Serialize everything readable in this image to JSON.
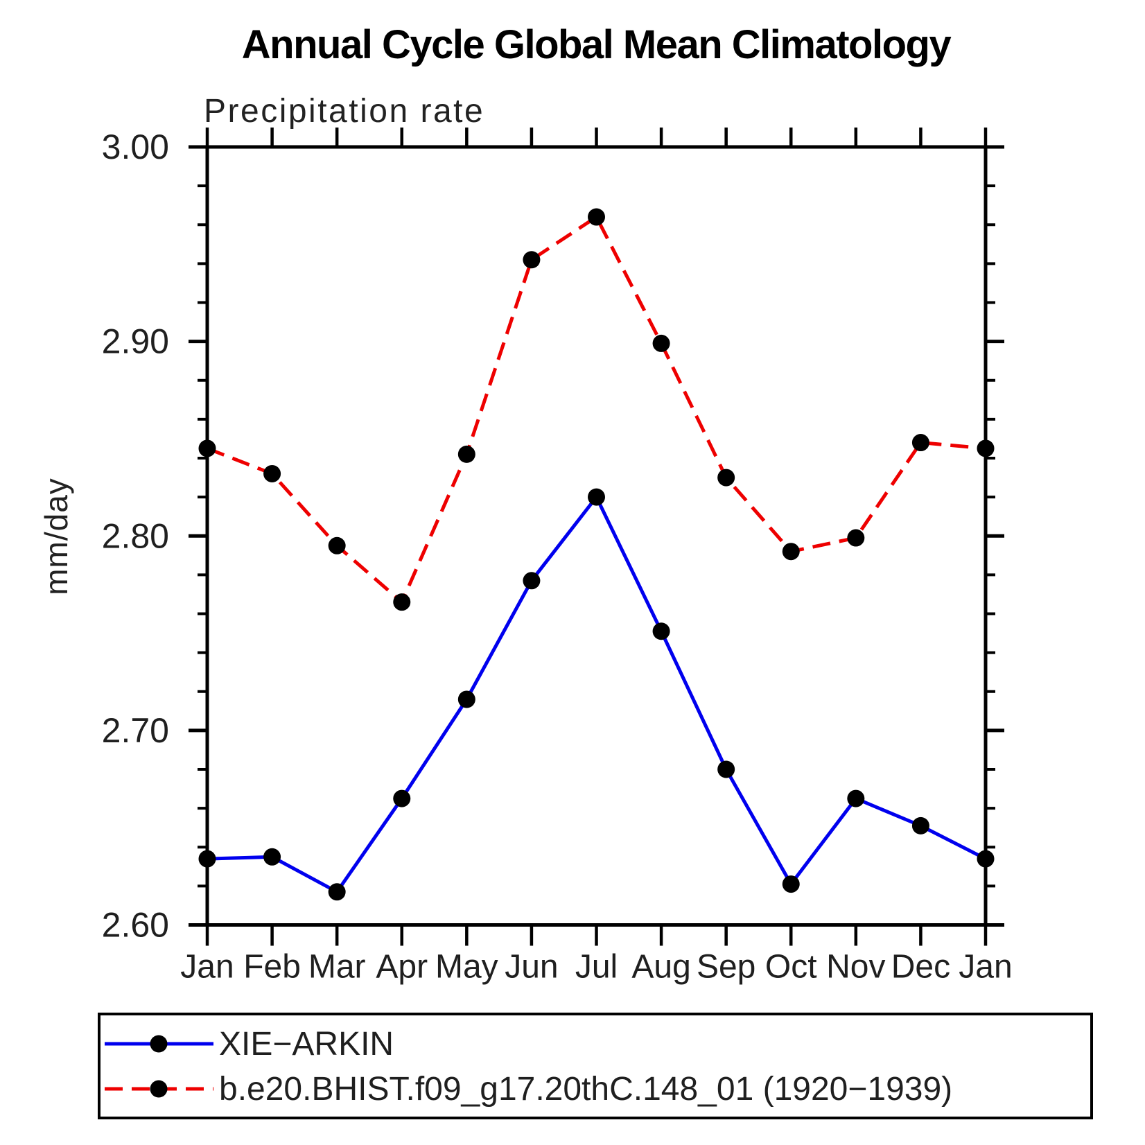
{
  "title": "Annual Cycle Global Mean Climatology",
  "chart_data": {
    "type": "line",
    "title": "Annual Cycle Global Mean Climatology",
    "subtitle": "Precipitation rate",
    "ylabel": "mm/day",
    "xlabel": "",
    "categories": [
      "Jan",
      "Feb",
      "Mar",
      "Apr",
      "May",
      "Jun",
      "Jul",
      "Aug",
      "Sep",
      "Oct",
      "Nov",
      "Dec",
      "Jan"
    ],
    "series": [
      {
        "name": "XIE−ARKIN",
        "style": "solid",
        "color": "#0000ee",
        "marker": "circle",
        "marker_color": "#000000",
        "values": [
          2.634,
          2.635,
          2.617,
          2.665,
          2.716,
          2.777,
          2.82,
          2.751,
          2.68,
          2.621,
          2.665,
          2.651,
          2.634
        ]
      },
      {
        "name": "b.e20.BHIST.f09_g17.20thC.148_01 (1920−1939)",
        "style": "dashed",
        "color": "#ee0000",
        "marker": "circle",
        "marker_color": "#000000",
        "values": [
          2.845,
          2.832,
          2.795,
          2.766,
          2.842,
          2.942,
          2.964,
          2.899,
          2.83,
          2.792,
          2.799,
          2.848,
          2.845
        ]
      }
    ],
    "ylim": [
      2.6,
      3.0
    ],
    "ytick_major": [
      2.6,
      2.7,
      2.8,
      2.9,
      3.0
    ],
    "ytick_labels": [
      "2.60",
      "2.70",
      "2.80",
      "2.90",
      "3.00"
    ],
    "ytick_minor_step": 0.02,
    "grid": false,
    "legend_position": "bottom",
    "axis_color": "#000000"
  }
}
